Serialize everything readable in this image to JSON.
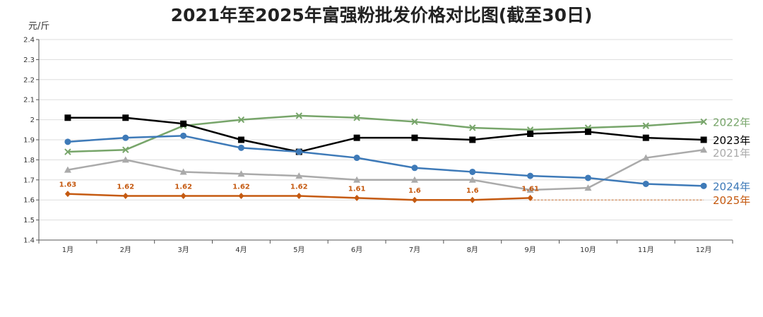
{
  "chart_data": {
    "type": "line",
    "title": "2021年至2025年富强粉批发价格对比图(截至30日)",
    "ylabel": "元/斤",
    "xlabel": "",
    "ylim": [
      1.4,
      2.4
    ],
    "yticks": [
      "1.4",
      "1.5",
      "1.6",
      "1.7",
      "1.8",
      "1.9",
      "2",
      "2.1",
      "2.2",
      "2.3",
      "2.4"
    ],
    "categories": [
      "1月",
      "2月",
      "3月",
      "4月",
      "5月",
      "6月",
      "7月",
      "8月",
      "9月",
      "10月",
      "11月",
      "12月"
    ],
    "grid": true,
    "legend": "right-end-labels",
    "series": [
      {
        "name": "2022年",
        "color": "#77a56a",
        "marker": "x",
        "values": [
          1.84,
          1.85,
          1.97,
          2.0,
          2.02,
          2.01,
          1.99,
          1.96,
          1.95,
          1.96,
          1.97,
          1.99
        ]
      },
      {
        "name": "2023年",
        "color": "#000000",
        "marker": "square",
        "values": [
          2.01,
          2.01,
          1.98,
          1.9,
          1.84,
          1.91,
          1.91,
          1.9,
          1.93,
          1.94,
          1.91,
          1.9
        ]
      },
      {
        "name": "2021年",
        "color": "#aaaaaa",
        "marker": "triangle",
        "values": [
          1.75,
          1.8,
          1.74,
          1.73,
          1.72,
          1.7,
          1.7,
          1.7,
          1.65,
          1.66,
          1.81,
          1.85
        ]
      },
      {
        "name": "2024年",
        "color": "#3e7ab8",
        "marker": "circle",
        "values": [
          1.89,
          1.91,
          1.92,
          1.86,
          1.84,
          1.81,
          1.76,
          1.74,
          1.72,
          1.71,
          1.68,
          1.67
        ]
      },
      {
        "name": "2025年",
        "color": "#c55a11",
        "marker": "diamond",
        "values": [
          1.63,
          1.62,
          1.62,
          1.62,
          1.62,
          1.61,
          1.6,
          1.6,
          1.61,
          null,
          null,
          null
        ],
        "data_labels": [
          "1.63",
          "1.62",
          "1.62",
          "1.62",
          "1.62",
          "1.61",
          "1.6",
          "1.6",
          "1.61"
        ],
        "reference_value": 1.6
      }
    ]
  }
}
